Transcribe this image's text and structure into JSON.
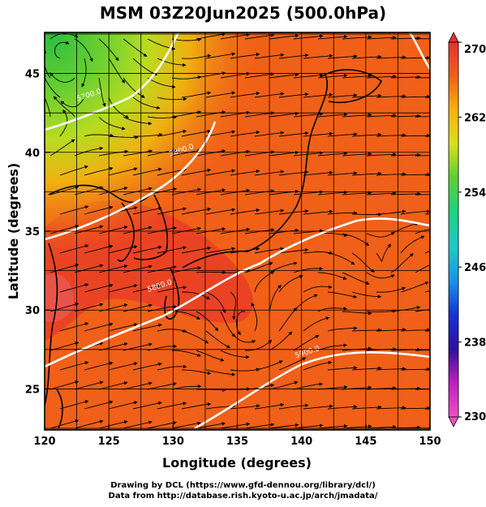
{
  "title": "MSM 03Z20Jun2025 (500.0hPa)",
  "credits": {
    "line1": "Drawing by DCL (https://www.gfd-dennou.org/library/dcl/)",
    "line2": "Data from http://database.rish.kyoto-u.ac.jp/arch/jmadata/"
  },
  "map": {
    "xlabel": "Longitude (degrees)",
    "ylabel": "Latitude  (degrees)",
    "lon_range": [
      120,
      150
    ],
    "lat_range": [
      22.4,
      47.6
    ],
    "lon_ticks": [
      120,
      125,
      130,
      135,
      140,
      145,
      150
    ],
    "lat_ticks": [
      25,
      30,
      35,
      40,
      45
    ],
    "contour_labels": [
      {
        "text": "5700.0",
        "lon": 123.5,
        "lat": 43.5
      },
      {
        "text": "5800.0",
        "lon": 130.7,
        "lat": 40.0
      },
      {
        "text": "5800.0",
        "lon": 129.0,
        "lat": 31.4
      },
      {
        "text": "5900.0",
        "lon": 140.5,
        "lat": 27.2
      }
    ],
    "field_colors": {
      "background": "#f06018",
      "warm": "#e83a28",
      "cool_high": "#40c838",
      "cool_mid": "#a8d820"
    }
  },
  "colorbar": {
    "min": 230,
    "max": 270,
    "tick_labels": [
      "270",
      "262",
      "254",
      "246",
      "238",
      "230"
    ],
    "colors_top_to_bottom": [
      "#e83030",
      "#f06018",
      "#f8b010",
      "#d8e020",
      "#60d030",
      "#20d080",
      "#20c8c8",
      "#1890e8",
      "#1830d0",
      "#3010a0",
      "#c020c0",
      "#f050c0"
    ]
  }
}
